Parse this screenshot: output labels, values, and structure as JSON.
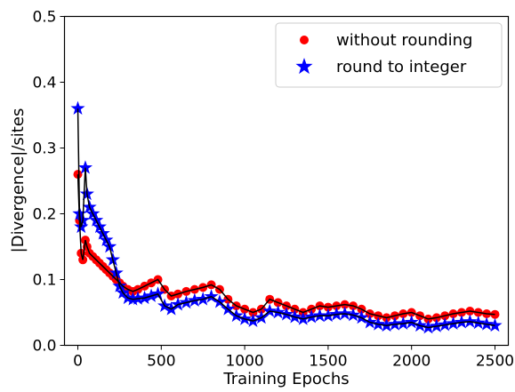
{
  "chart_data": {
    "type": "scatter",
    "xlabel": "Training Epochs",
    "ylabel": "|Divergence|/sites",
    "xlim": [
      -80,
      2580
    ],
    "ylim": [
      0.0,
      0.5
    ],
    "x_ticks": [
      0,
      500,
      1000,
      1500,
      2000,
      2500
    ],
    "x_tick_labels": [
      "0",
      "500",
      "1000",
      "1500",
      "2000",
      "2500"
    ],
    "y_ticks": [
      0.0,
      0.1,
      0.2,
      0.3,
      0.4,
      0.5
    ],
    "y_tick_labels": [
      "0.0",
      "0.1",
      "0.2",
      "0.3",
      "0.4",
      "0.5"
    ],
    "grid": false,
    "legend_position": "top-right",
    "series": [
      {
        "name": "without rounding",
        "marker": "circle",
        "color": "#ff0000",
        "line_color": "#000000",
        "points": [
          [
            0,
            0.26
          ],
          [
            10,
            0.19
          ],
          [
            20,
            0.14
          ],
          [
            30,
            0.13
          ],
          [
            45,
            0.16
          ],
          [
            55,
            0.15
          ],
          [
            70,
            0.14
          ],
          [
            90,
            0.135
          ],
          [
            110,
            0.13
          ],
          [
            130,
            0.125
          ],
          [
            150,
            0.12
          ],
          [
            170,
            0.115
          ],
          [
            190,
            0.11
          ],
          [
            210,
            0.105
          ],
          [
            230,
            0.1
          ],
          [
            250,
            0.095
          ],
          [
            270,
            0.09
          ],
          [
            300,
            0.085
          ],
          [
            330,
            0.082
          ],
          [
            360,
            0.085
          ],
          [
            400,
            0.09
          ],
          [
            440,
            0.095
          ],
          [
            480,
            0.1
          ],
          [
            520,
            0.085
          ],
          [
            560,
            0.075
          ],
          [
            600,
            0.078
          ],
          [
            650,
            0.082
          ],
          [
            700,
            0.085
          ],
          [
            750,
            0.088
          ],
          [
            800,
            0.092
          ],
          [
            850,
            0.085
          ],
          [
            900,
            0.07
          ],
          [
            950,
            0.06
          ],
          [
            1000,
            0.055
          ],
          [
            1050,
            0.05
          ],
          [
            1100,
            0.055
          ],
          [
            1150,
            0.07
          ],
          [
            1200,
            0.065
          ],
          [
            1250,
            0.06
          ],
          [
            1300,
            0.055
          ],
          [
            1350,
            0.05
          ],
          [
            1400,
            0.055
          ],
          [
            1450,
            0.06
          ],
          [
            1500,
            0.058
          ],
          [
            1550,
            0.06
          ],
          [
            1600,
            0.062
          ],
          [
            1650,
            0.06
          ],
          [
            1700,
            0.055
          ],
          [
            1750,
            0.048
          ],
          [
            1800,
            0.045
          ],
          [
            1850,
            0.042
          ],
          [
            1900,
            0.045
          ],
          [
            1950,
            0.048
          ],
          [
            2000,
            0.05
          ],
          [
            2050,
            0.045
          ],
          [
            2100,
            0.04
          ],
          [
            2150,
            0.042
          ],
          [
            2200,
            0.045
          ],
          [
            2250,
            0.048
          ],
          [
            2300,
            0.05
          ],
          [
            2350,
            0.052
          ],
          [
            2400,
            0.05
          ],
          [
            2450,
            0.048
          ],
          [
            2500,
            0.047
          ]
        ]
      },
      {
        "name": "round to integer",
        "marker": "star",
        "color": "#0000ff",
        "line_color": "#000000",
        "points": [
          [
            0,
            0.36
          ],
          [
            10,
            0.2
          ],
          [
            20,
            0.18
          ],
          [
            30,
            0.19
          ],
          [
            45,
            0.27
          ],
          [
            55,
            0.23
          ],
          [
            70,
            0.21
          ],
          [
            90,
            0.2
          ],
          [
            110,
            0.19
          ],
          [
            130,
            0.18
          ],
          [
            150,
            0.17
          ],
          [
            170,
            0.16
          ],
          [
            190,
            0.15
          ],
          [
            210,
            0.13
          ],
          [
            230,
            0.11
          ],
          [
            250,
            0.09
          ],
          [
            270,
            0.08
          ],
          [
            300,
            0.072
          ],
          [
            330,
            0.07
          ],
          [
            360,
            0.071
          ],
          [
            400,
            0.072
          ],
          [
            440,
            0.075
          ],
          [
            480,
            0.078
          ],
          [
            520,
            0.06
          ],
          [
            560,
            0.055
          ],
          [
            600,
            0.062
          ],
          [
            650,
            0.065
          ],
          [
            700,
            0.068
          ],
          [
            750,
            0.07
          ],
          [
            800,
            0.074
          ],
          [
            850,
            0.066
          ],
          [
            900,
            0.055
          ],
          [
            950,
            0.045
          ],
          [
            1000,
            0.04
          ],
          [
            1050,
            0.037
          ],
          [
            1100,
            0.042
          ],
          [
            1150,
            0.052
          ],
          [
            1200,
            0.05
          ],
          [
            1250,
            0.047
          ],
          [
            1300,
            0.043
          ],
          [
            1350,
            0.04
          ],
          [
            1400,
            0.043
          ],
          [
            1450,
            0.045
          ],
          [
            1500,
            0.045
          ],
          [
            1550,
            0.047
          ],
          [
            1600,
            0.048
          ],
          [
            1650,
            0.046
          ],
          [
            1700,
            0.042
          ],
          [
            1750,
            0.035
          ],
          [
            1800,
            0.032
          ],
          [
            1850,
            0.03
          ],
          [
            1900,
            0.032
          ],
          [
            1950,
            0.033
          ],
          [
            2000,
            0.035
          ],
          [
            2050,
            0.03
          ],
          [
            2100,
            0.027
          ],
          [
            2150,
            0.029
          ],
          [
            2200,
            0.031
          ],
          [
            2250,
            0.033
          ],
          [
            2300,
            0.035
          ],
          [
            2350,
            0.036
          ],
          [
            2400,
            0.034
          ],
          [
            2450,
            0.032
          ],
          [
            2500,
            0.03
          ]
        ]
      }
    ]
  }
}
